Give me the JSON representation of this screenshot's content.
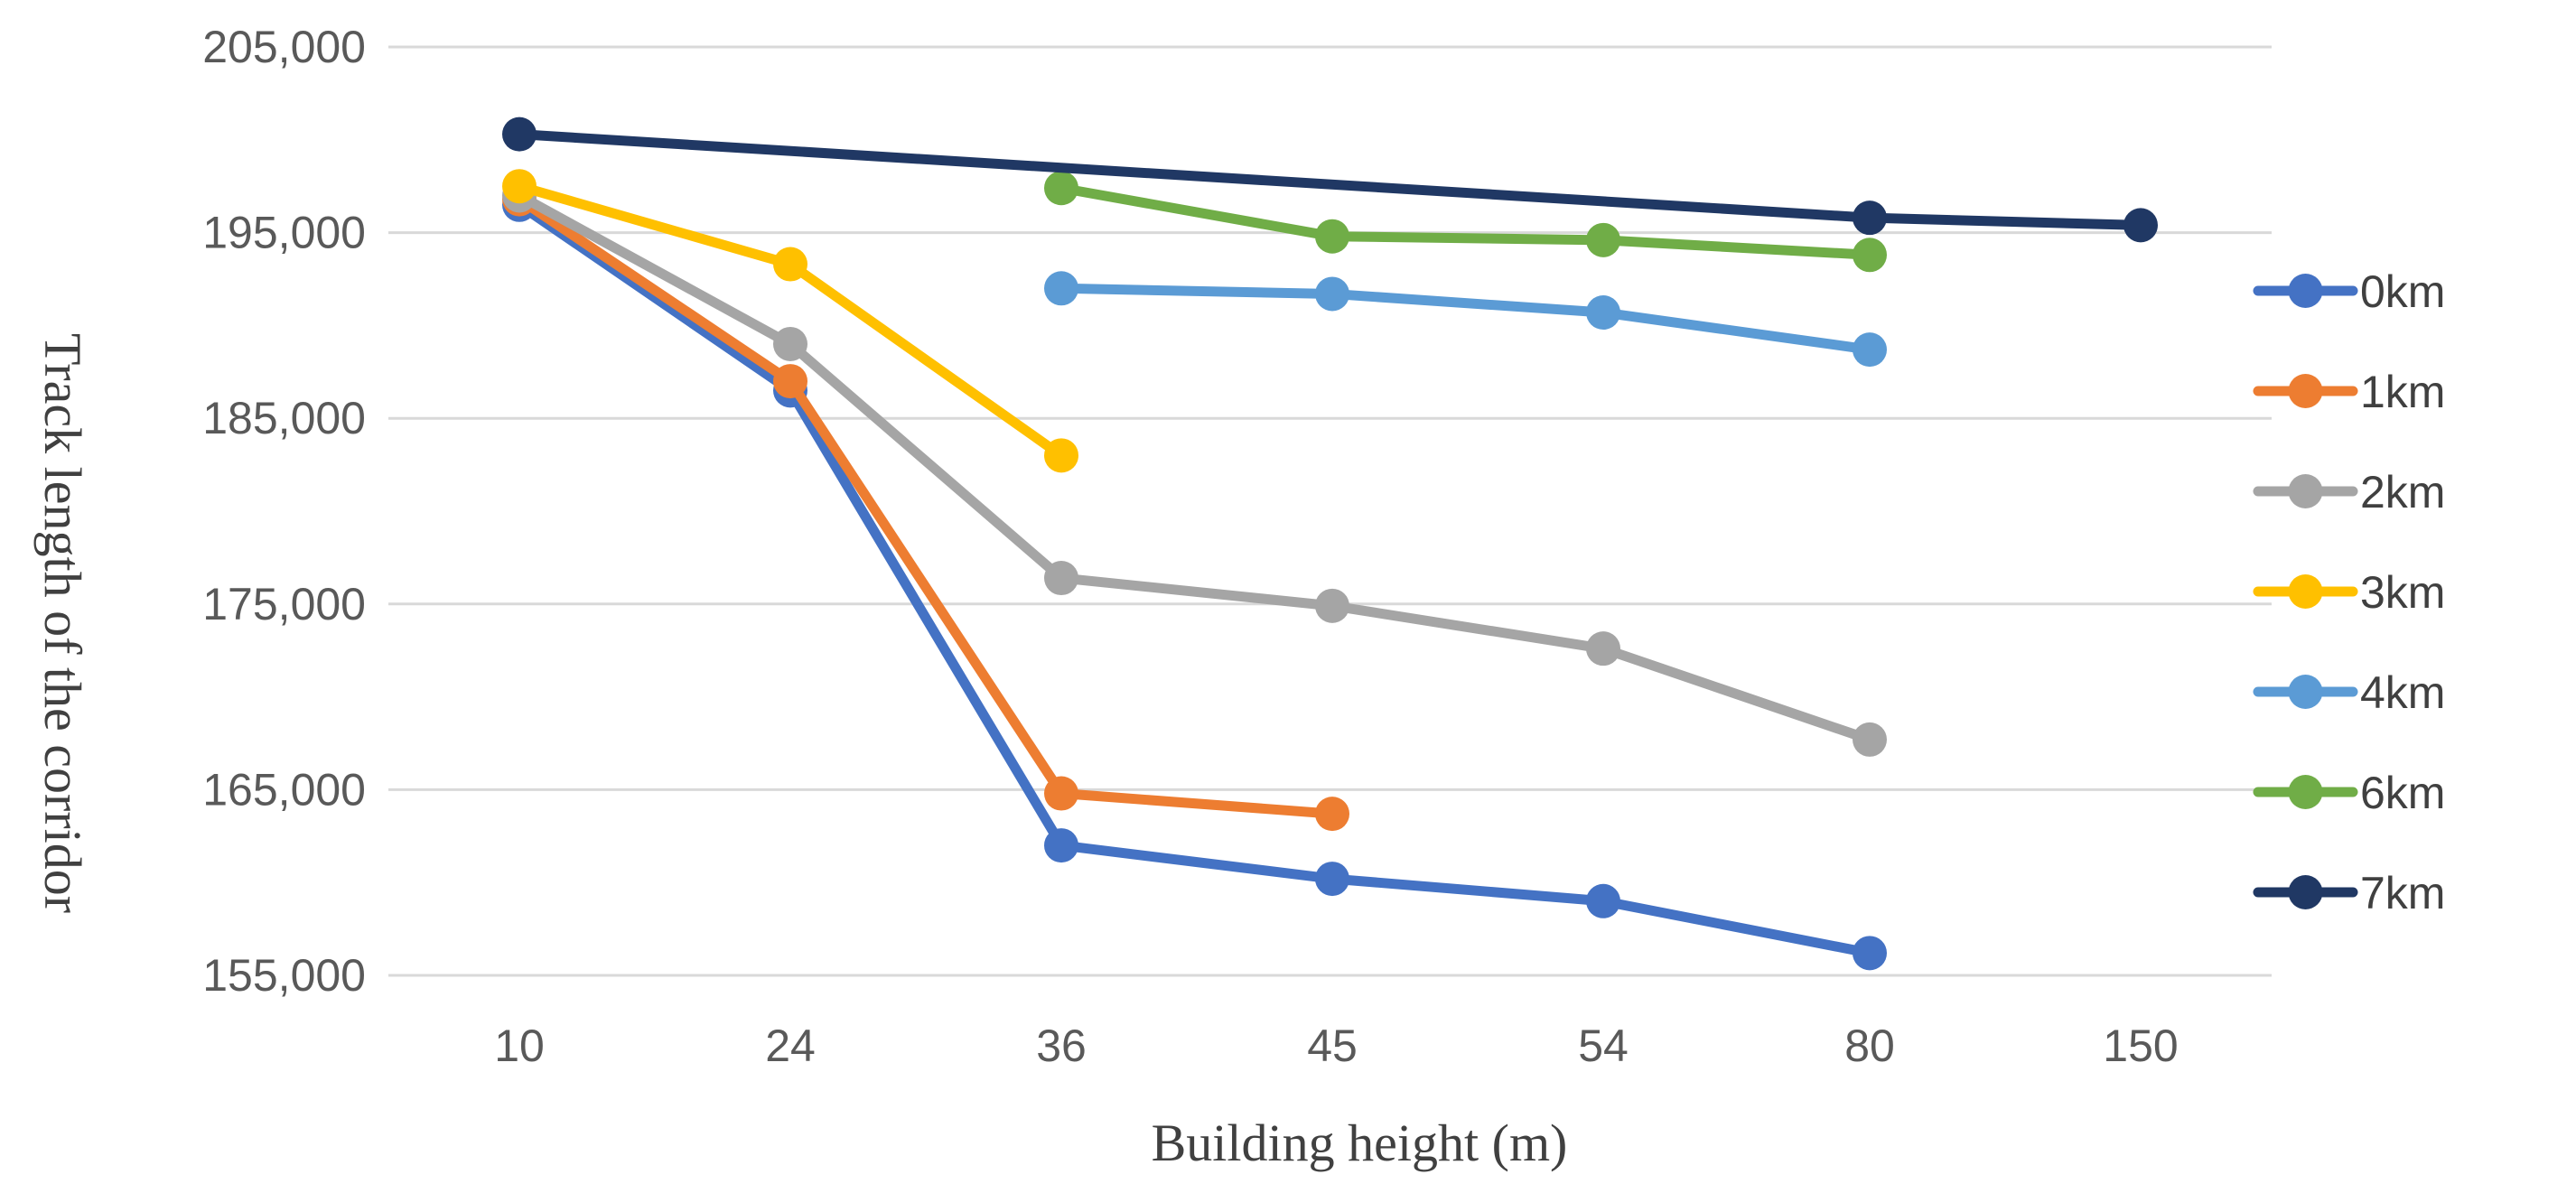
{
  "chart_data": {
    "type": "line",
    "title": "",
    "xlabel": "Building height (m)",
    "ylabel": "Track length of the corridor",
    "categories": [
      "10",
      "24",
      "36",
      "45",
      "54",
      "80",
      "150"
    ],
    "ylim": [
      155000,
      205000
    ],
    "yticks": [
      155000,
      165000,
      175000,
      185000,
      195000,
      205000
    ],
    "ytick_labels": [
      "155,000",
      "165,000",
      "175,000",
      "185,000",
      "195,000",
      "205,000"
    ],
    "grid": true,
    "legend_position": "right",
    "series": [
      {
        "name": "0km",
        "color": "#4472C4",
        "values": [
          196500,
          186500,
          162000,
          160200,
          159000,
          156200,
          null
        ]
      },
      {
        "name": "1km",
        "color": "#ED7D31",
        "values": [
          196800,
          187000,
          164800,
          163700,
          null,
          null,
          null
        ]
      },
      {
        "name": "2km",
        "color": "#A5A5A5",
        "values": [
          197000,
          189000,
          176400,
          174900,
          172600,
          167700,
          null
        ]
      },
      {
        "name": "3km",
        "color": "#FFC000",
        "values": [
          197500,
          193300,
          183000,
          null,
          null,
          null,
          null
        ]
      },
      {
        "name": "4km",
        "color": "#5B9BD5",
        "values": [
          null,
          null,
          192000,
          191700,
          190700,
          188700,
          null
        ]
      },
      {
        "name": "6km",
        "color": "#70AD47",
        "values": [
          null,
          null,
          197400,
          194800,
          194600,
          193800,
          null
        ]
      },
      {
        "name": "7km",
        "color": "#203864",
        "values": [
          200300,
          null,
          null,
          null,
          null,
          195800,
          195400
        ]
      }
    ]
  }
}
